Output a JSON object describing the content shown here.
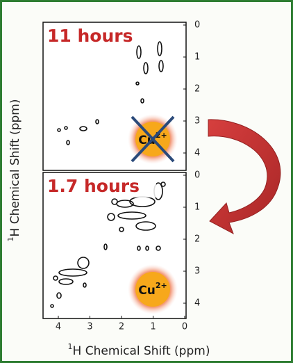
{
  "panels": [
    {
      "label": "11 hours",
      "yticks": [
        0,
        1,
        2,
        3,
        4
      ],
      "ion": {
        "text": "Cu",
        "sup": "2+"
      },
      "crossed": true
    },
    {
      "label": "1.7 hours",
      "yticks": [
        0,
        1,
        2,
        3,
        4
      ],
      "ion": {
        "text": "Cu",
        "sup": "2+"
      },
      "crossed": false
    }
  ],
  "xticks": [
    4,
    3,
    2,
    1,
    0
  ],
  "y_label": {
    "sup": "1",
    "text": "H Chemical Shift (ppm)"
  },
  "x_label": {
    "sup": "1",
    "text": "H Chemical Shift (ppm)"
  }
}
